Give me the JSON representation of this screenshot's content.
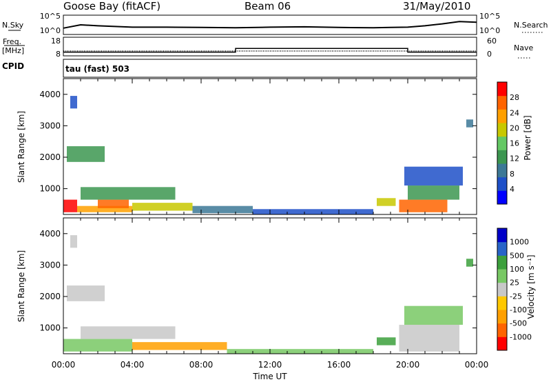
{
  "header": {
    "station": "Goose Bay (fitACF)",
    "beam": "Beam 06",
    "date": "31/May/2010"
  },
  "strip_labels": {
    "nsky": "N.Sky",
    "nsky_ticks": [
      "10^5",
      "10^0"
    ],
    "nsearch": "N.Search",
    "nsearch_ticks": [
      "10^5",
      "10^0"
    ],
    "freq_top": "Freq.",
    "freq_unit": "[MHz]",
    "freq_ticks": [
      "18",
      "8"
    ],
    "nave": "Nave",
    "nave_ticks": [
      "60",
      "0"
    ],
    "cpid": "CPID",
    "cpid_value": "tau (fast) 503"
  },
  "colors": {
    "power": [
      "#0000ff",
      "#1e50c8",
      "#3c7896",
      "#3c9650",
      "#64c864",
      "#c8c800",
      "#ffa000",
      "#ff6400",
      "#ff0000"
    ],
    "velocity": [
      "#ff0000",
      "#ff6400",
      "#ffa000",
      "#ffc800",
      "#c8c8c8",
      "#78c864",
      "#3ca03c",
      "#2864c8",
      "#0000c8"
    ],
    "noise_trace": "#000000"
  },
  "chart_data": [
    {
      "type": "line",
      "panel": "noise-frequency",
      "xlabel": "",
      "series": [
        {
          "name": "N.Sky",
          "x": [
            0,
            1,
            2,
            3,
            4,
            6,
            8,
            10,
            12,
            14,
            16,
            18,
            19,
            20,
            21,
            22,
            23,
            24
          ],
          "values": [
            1.5,
            2.5,
            2.2,
            2.0,
            1.8,
            1.8,
            1.7,
            1.6,
            1.8,
            1.9,
            1.7,
            1.6,
            1.7,
            1.8,
            2.2,
            2.8,
            3.5,
            3.3
          ]
        },
        {
          "name": "Frequency",
          "x": [
            0,
            10,
            10,
            20,
            20,
            24
          ],
          "values": [
            10,
            10,
            12,
            12,
            10,
            10
          ]
        }
      ]
    },
    {
      "type": "heatmap",
      "panel": "power",
      "xlabel": "Time UT",
      "ylabel": "Slant Range [km]",
      "x_ticks": [
        "00:00",
        "04:00",
        "08:00",
        "12:00",
        "16:00",
        "20:00",
        "00:00"
      ],
      "y_ticks": [
        "1000",
        "2000",
        "3000",
        "4000"
      ],
      "xlim": [
        0,
        24
      ],
      "ylim": [
        180,
        4500
      ],
      "colorbar_label": "Power [dB]",
      "colorbar_ticks": [
        "4",
        "8",
        "12",
        "16",
        "20",
        "24",
        "28"
      ],
      "colorbar_range": [
        0,
        32
      ],
      "echo_regions": [
        {
          "t0": 0.0,
          "t1": 0.8,
          "r0": 250,
          "r1": 650,
          "value": 29
        },
        {
          "t0": 0.8,
          "t1": 4.0,
          "r0": 250,
          "r1": 450,
          "value": 24
        },
        {
          "t0": 2.0,
          "t1": 3.8,
          "r0": 380,
          "r1": 650,
          "value": 27
        },
        {
          "t0": 1.0,
          "t1": 6.5,
          "r0": 650,
          "r1": 1050,
          "value": 13
        },
        {
          "t0": 4.0,
          "t1": 7.5,
          "r0": 300,
          "r1": 550,
          "value": 18
        },
        {
          "t0": 7.5,
          "t1": 11.0,
          "r0": 220,
          "r1": 450,
          "value": 10
        },
        {
          "t0": 11.0,
          "t1": 18.0,
          "r0": 180,
          "r1": 350,
          "value": 7
        },
        {
          "t0": 0.2,
          "t1": 2.4,
          "r0": 1850,
          "r1": 2350,
          "value": 12
        },
        {
          "t0": 0.4,
          "t1": 0.8,
          "r0": 3550,
          "r1": 3950,
          "value": 7
        },
        {
          "t0": 18.2,
          "t1": 19.3,
          "r0": 450,
          "r1": 700,
          "value": 20
        },
        {
          "t0": 19.5,
          "t1": 22.3,
          "r0": 250,
          "r1": 650,
          "value": 26
        },
        {
          "t0": 20.0,
          "t1": 23.0,
          "r0": 650,
          "r1": 1100,
          "value": 14
        },
        {
          "t0": 19.8,
          "t1": 23.2,
          "r0": 1100,
          "r1": 1700,
          "value": 7
        },
        {
          "t0": 23.4,
          "t1": 23.8,
          "r0": 2950,
          "r1": 3200,
          "value": 8
        }
      ]
    },
    {
      "type": "heatmap",
      "panel": "velocity",
      "xlabel": "Time UT",
      "ylabel": "Slant Range [km]",
      "x_ticks": [
        "00:00",
        "04:00",
        "08:00",
        "12:00",
        "16:00",
        "20:00",
        "00:00"
      ],
      "y_ticks": [
        "1000",
        "2000",
        "3000",
        "4000"
      ],
      "xlim": [
        0,
        24
      ],
      "ylim": [
        180,
        4500
      ],
      "colorbar_label": "Velocity [m s⁻¹]",
      "colorbar_ticks": [
        "-1000",
        "-500",
        "-100",
        "-25",
        "25",
        "100",
        "500",
        "1000"
      ],
      "echo_regions": [
        {
          "t0": 0.0,
          "t1": 4.0,
          "r0": 250,
          "r1": 650,
          "value": 80
        },
        {
          "t0": 1.0,
          "t1": 6.5,
          "r0": 650,
          "r1": 1050,
          "value": 0
        },
        {
          "t0": 4.0,
          "t1": 9.5,
          "r0": 300,
          "r1": 550,
          "value": -100
        },
        {
          "t0": 9.5,
          "t1": 18.0,
          "r0": 180,
          "r1": 330,
          "value": 60
        },
        {
          "t0": 0.2,
          "t1": 2.4,
          "r0": 1850,
          "r1": 2350,
          "value": 0
        },
        {
          "t0": 0.4,
          "t1": 0.8,
          "r0": 3550,
          "r1": 3950,
          "value": 0
        },
        {
          "t0": 18.2,
          "t1": 19.3,
          "r0": 450,
          "r1": 700,
          "value": 150
        },
        {
          "t0": 19.5,
          "t1": 23.0,
          "r0": 250,
          "r1": 1100,
          "value": 10
        },
        {
          "t0": 19.8,
          "t1": 23.2,
          "r0": 1100,
          "r1": 1700,
          "value": 60
        },
        {
          "t0": 23.4,
          "t1": 23.8,
          "r0": 2950,
          "r1": 3200,
          "value": 120
        }
      ]
    }
  ]
}
